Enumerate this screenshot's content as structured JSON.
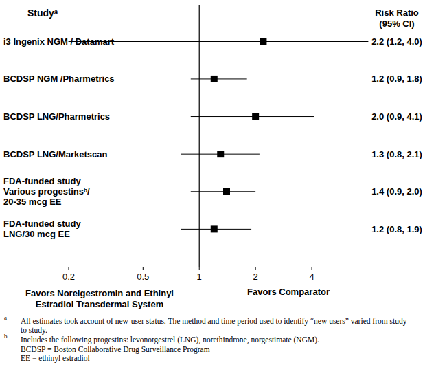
{
  "chart_data": {
    "type": "forest",
    "column_titles": {
      "study": "Studyᵃ",
      "estimate": "Risk Ratio\n(95% CI)"
    },
    "categories": [
      "i3 Ingenix NGM / Datamart",
      "BCDSP NGM /Pharmetrics",
      "BCDSP LNG/Pharmetrics",
      "BCDSP LNG/Marketscan",
      "FDA-funded study\nVarious progestinsᵇ/\n20-35 mcg EE",
      "FDA-funded study\nLNG/30 mcg EE"
    ],
    "values": [
      2.2,
      1.2,
      2.0,
      1.3,
      1.4,
      1.2
    ],
    "ci_lower": [
      1.2,
      0.9,
      0.9,
      0.8,
      0.9,
      0.8
    ],
    "ci_upper": [
      4.0,
      1.8,
      4.1,
      2.1,
      2.0,
      1.9
    ],
    "value_labels": [
      "2.2 (1.2, 4.0)",
      "1.2 (0.9, 1.8)",
      "2.0 (0.9, 4.1)",
      "1.3 (0.8, 2.1)",
      "1.4 (0.9, 2.0)",
      "1.2 (0.8, 1.9)"
    ],
    "reference_line": 1,
    "log": "x",
    "xlim": [
      0.2,
      8
    ],
    "xticks": [
      0.2,
      0.5,
      1,
      2,
      4
    ],
    "x_label_left": "Favors Norelgestromin and Ethinyl\nEstradiol Transdermal System",
    "x_label_right": "Favors Comparator",
    "color": "#000000",
    "marker": "square",
    "footnotes": [
      {
        "mark": "a",
        "text": "All estimates took account of new-user status. The method and time period used to identify “new users” varied from study to study."
      },
      {
        "mark": "b",
        "text": "Includes the following progestins: levonorgestrel (LNG), norethindrone, norgestimate (NGM)."
      },
      {
        "text": "BCDSP = Boston Collaborative Drug Surveillance Program"
      },
      {
        "text": "EE = ethinyl estradiol"
      }
    ]
  }
}
